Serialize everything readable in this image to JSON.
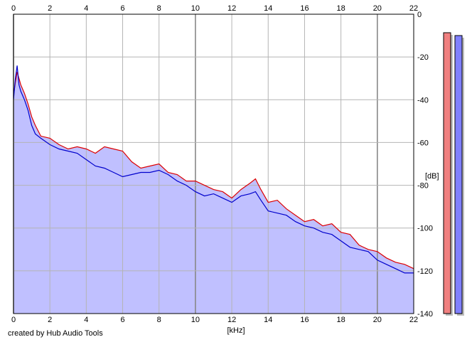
{
  "footer": "created by Hub Audio Tools",
  "chart_data": {
    "type": "area",
    "xlabel": "[kHz]",
    "ylabel": "[dB]",
    "xlim": [
      0,
      22
    ],
    "ylim": [
      -140,
      0
    ],
    "xticks": [
      0,
      2,
      4,
      6,
      8,
      10,
      12,
      14,
      16,
      18,
      20,
      22
    ],
    "yticks": [
      0,
      -20,
      -40,
      -60,
      -80,
      -100,
      -120,
      -140
    ],
    "grid": true,
    "fill_color": "#c0c0ff",
    "series": [
      {
        "color": "#dd0000",
        "x": [
          0,
          0.1,
          0.2,
          0.3,
          0.4,
          0.6,
          0.8,
          1.0,
          1.2,
          1.5,
          2.0,
          2.5,
          3.0,
          3.5,
          4.0,
          4.5,
          5.0,
          5.5,
          6.0,
          6.5,
          7.0,
          7.5,
          8.0,
          8.5,
          9.0,
          9.5,
          10.0,
          10.5,
          11.0,
          11.5,
          12.0,
          12.5,
          13.0,
          13.3,
          13.6,
          14.0,
          14.5,
          15.0,
          15.5,
          16.0,
          16.5,
          17.0,
          17.5,
          18.0,
          18.5,
          19.0,
          19.5,
          20.0,
          20.5,
          21.0,
          21.5,
          22.0
        ],
        "values": [
          -38,
          -32,
          -27,
          -30,
          -33,
          -37,
          -42,
          -48,
          -52,
          -57,
          -58,
          -61,
          -63,
          -62,
          -63,
          -65,
          -62,
          -63,
          -64,
          -69,
          -72,
          -71,
          -70,
          -74,
          -75,
          -78,
          -78,
          -80,
          -82,
          -83,
          -86,
          -82,
          -79,
          -77,
          -82,
          -88,
          -87,
          -91,
          -94,
          -97,
          -96,
          -99,
          -98,
          -102,
          -103,
          -108,
          -110,
          -111,
          -114,
          -116,
          -117,
          -119
        ]
      },
      {
        "color": "#0000cc",
        "x": [
          0,
          0.1,
          0.2,
          0.3,
          0.4,
          0.6,
          0.8,
          1.0,
          1.2,
          1.5,
          2.0,
          2.5,
          3.0,
          3.5,
          4.0,
          4.5,
          5.0,
          5.5,
          6.0,
          6.5,
          7.0,
          7.5,
          8.0,
          8.5,
          9.0,
          9.5,
          10.0,
          10.5,
          11.0,
          11.5,
          12.0,
          12.5,
          13.0,
          13.3,
          13.6,
          14.0,
          14.5,
          15.0,
          15.5,
          16.0,
          16.5,
          17.0,
          17.5,
          18.0,
          18.5,
          19.0,
          19.5,
          20.0,
          20.5,
          21.0,
          21.5,
          22.0
        ],
        "values": [
          -40,
          -30,
          -24,
          -33,
          -36,
          -40,
          -45,
          -52,
          -56,
          -58,
          -61,
          -63,
          -64,
          -65,
          -68,
          -71,
          -72,
          -74,
          -76,
          -75,
          -74,
          -74,
          -73,
          -75,
          -78,
          -80,
          -83,
          -85,
          -84,
          -86,
          -88,
          -85,
          -84,
          -83,
          -87,
          -92,
          -93,
          -94,
          -97,
          -99,
          -100,
          -102,
          -103,
          -106,
          -109,
          -110,
          -111,
          -115,
          -117,
          -119,
          -121,
          -121
        ]
      }
    ],
    "level_meters": [
      {
        "color": "#f08080"
      },
      {
        "color": "#8080ff"
      }
    ]
  }
}
